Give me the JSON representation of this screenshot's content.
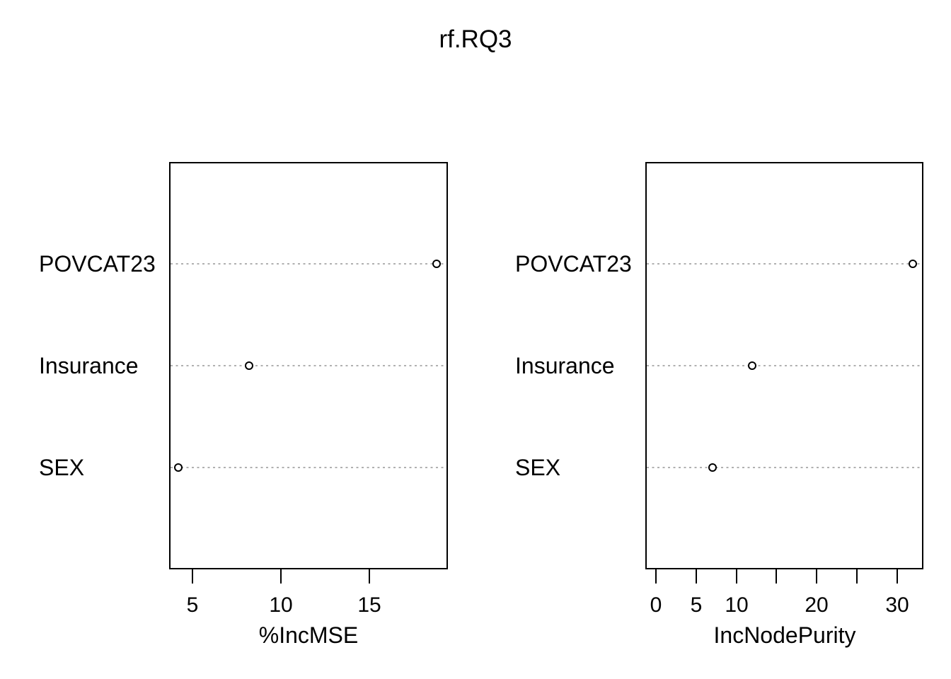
{
  "figure": {
    "title": "rf.RQ3",
    "background_color": "#ffffff",
    "foreground_color": "#000000",
    "gridline_color": "#b0b0b0"
  },
  "chart_data": {
    "type": "scatter",
    "subtype": "dot-chart-variable-importance",
    "title": "rf.RQ3",
    "categories": [
      "POVCAT23",
      "Insurance",
      "SEX"
    ],
    "legend": null,
    "panels": [
      {
        "xlabel": "%IncMSE",
        "values": [
          18.8,
          8.2,
          4.2
        ],
        "xlim": [
          3.68,
          19.44
        ],
        "xticks": [
          {
            "value": 5,
            "label": "5"
          },
          {
            "value": 10,
            "label": "10"
          },
          {
            "value": 15,
            "label": "15"
          }
        ],
        "grid": "dotted-horizontal",
        "marker": "open-circle"
      },
      {
        "xlabel": "IncNodePurity",
        "values": [
          32.0,
          12.0,
          7.0
        ],
        "xlim": [
          -1.33,
          33.28
        ],
        "xticks": [
          {
            "value": 0,
            "label": "0"
          },
          {
            "value": 5,
            "label": "5"
          },
          {
            "value": 10,
            "label": "10"
          },
          {
            "value": 15,
            "label": ""
          },
          {
            "value": 20,
            "label": "20"
          },
          {
            "value": 25,
            "label": ""
          },
          {
            "value": 30,
            "label": "30"
          }
        ],
        "grid": "dotted-horizontal",
        "marker": "open-circle"
      }
    ]
  }
}
